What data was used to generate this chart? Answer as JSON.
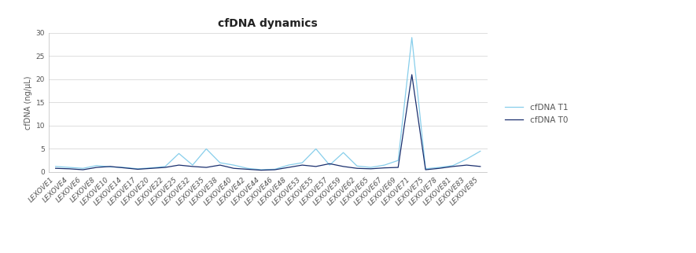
{
  "title": "cfDNA dynamics",
  "ylabel": "cfDNA (ng/μL)",
  "categories": [
    "LEXOVE1",
    "LEXOVE4",
    "LEXOVE6",
    "LEXOVE8",
    "LEXOVE10",
    "LEXOVE14",
    "LEXOVE17",
    "LEXOVE20",
    "LEXOVE22",
    "LEXOVE25",
    "LEXOVE32",
    "LEXOVE35",
    "LEXOVE38",
    "LEXOVE40",
    "LEXOVE42",
    "LEXOVE44",
    "LEXOVE46",
    "LEXOVE48",
    "LEXOVE53",
    "LEXOVE55",
    "LEXOVE57",
    "LEXOVE59",
    "LEXOVE62",
    "LEXOVE65",
    "LEXOVE67",
    "LEXOVE69",
    "LEXOVE71",
    "LEXOVE75",
    "LEXOVE78",
    "LEXOVE81",
    "LEXOVE83",
    "LEXOVE85"
  ],
  "T1": [
    1.2,
    1.0,
    0.8,
    1.4,
    1.1,
    1.0,
    0.7,
    0.9,
    1.2,
    4.0,
    1.5,
    5.0,
    2.0,
    1.5,
    0.8,
    0.5,
    0.6,
    1.5,
    2.0,
    5.0,
    1.5,
    4.2,
    1.3,
    1.0,
    1.5,
    2.5,
    29.0,
    0.7,
    1.0,
    1.4,
    2.8,
    4.5
  ],
  "T0": [
    0.8,
    0.7,
    0.5,
    1.0,
    1.2,
    0.9,
    0.6,
    0.8,
    1.0,
    1.5,
    1.2,
    1.0,
    1.5,
    0.8,
    0.6,
    0.4,
    0.5,
    1.0,
    1.5,
    1.2,
    1.8,
    1.2,
    0.8,
    0.7,
    0.9,
    1.0,
    21.0,
    0.5,
    0.8,
    1.2,
    1.5,
    1.2
  ],
  "color_T1": "#87CEEB",
  "color_T0": "#1a2f6e",
  "ylim": [
    0,
    30
  ],
  "yticks": [
    0,
    5,
    10,
    15,
    20,
    25,
    30
  ],
  "legend_T1": "cfDNA T1",
  "legend_T0": "cfDNA T0",
  "bg_color": "#ffffff",
  "grid_color": "#d0d0d0",
  "title_fontsize": 10,
  "label_fontsize": 7,
  "tick_fontsize": 6.5,
  "linewidth": 0.9
}
